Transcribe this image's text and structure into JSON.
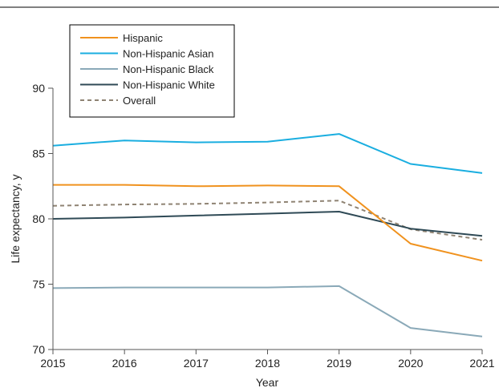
{
  "chart_data": {
    "type": "line",
    "title": "",
    "xlabel": "Year",
    "ylabel": "Life expectancy, y",
    "x": [
      2015,
      2016,
      2017,
      2018,
      2019,
      2020,
      2021
    ],
    "xlim": [
      2015,
      2021
    ],
    "ylim": [
      70,
      90
    ],
    "yticks": [
      70,
      75,
      80,
      85,
      90
    ],
    "grid": false,
    "legend_position": "top-left",
    "series": [
      {
        "name": "Hispanic",
        "color": "#f0921e",
        "dashed": false,
        "values": [
          82.6,
          82.6,
          82.5,
          82.55,
          82.5,
          78.1,
          76.8
        ]
      },
      {
        "name": "Non-Hispanic Asian",
        "color": "#1aaee0",
        "dashed": false,
        "values": [
          85.6,
          86.0,
          85.85,
          85.9,
          86.5,
          84.2,
          83.5
        ]
      },
      {
        "name": "Non-Hispanic Black",
        "color": "#8aa9b8",
        "dashed": false,
        "values": [
          74.7,
          74.75,
          74.75,
          74.75,
          74.85,
          71.65,
          71.0
        ]
      },
      {
        "name": "Non-Hispanic White",
        "color": "#2f4a56",
        "dashed": false,
        "values": [
          80.0,
          80.1,
          80.25,
          80.4,
          80.55,
          79.25,
          78.7
        ]
      },
      {
        "name": "Overall",
        "color": "#8f8373",
        "dashed": true,
        "values": [
          81.0,
          81.1,
          81.15,
          81.25,
          81.4,
          79.2,
          78.4
        ]
      }
    ]
  }
}
